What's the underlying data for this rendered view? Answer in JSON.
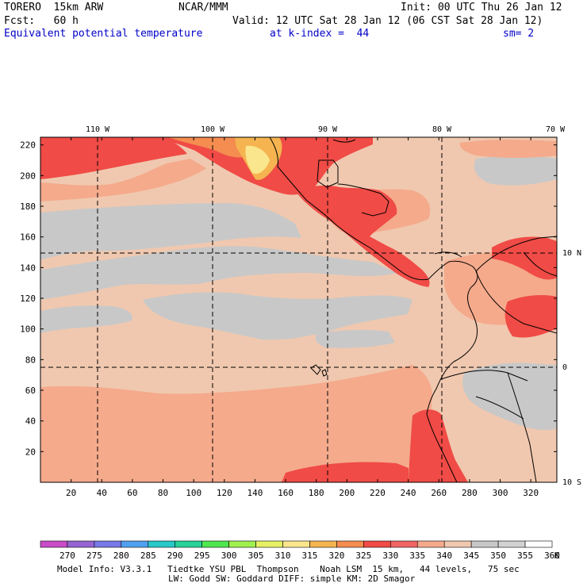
{
  "header": {
    "model": "TORERO  15km ARW",
    "org": "NCAR/MMM",
    "init": "Init: 00 UTC Thu 26 Jan 12",
    "fcst": "Fcst:   60 h",
    "valid": "Valid: 12 UTC Sat 28 Jan 12 (06 CST Sat 28 Jan 12)",
    "field": "Equivalent potential temperature",
    "level": "at k-index =  44",
    "smooth": "sm= 2"
  },
  "map": {
    "lon_labels": [
      "110 W",
      "100 W",
      "90 W",
      "80 W",
      "70 W"
    ],
    "lat_labels": [
      "10 N",
      "0",
      "10 S"
    ],
    "y_ticks": [
      "20",
      "40",
      "60",
      "80",
      "100",
      "120",
      "140",
      "160",
      "180",
      "200",
      "220"
    ],
    "x_ticks": [
      "20",
      "40",
      "60",
      "80",
      "100",
      "120",
      "140",
      "160",
      "180",
      "200",
      "220",
      "240",
      "260",
      "280",
      "300",
      "320"
    ]
  },
  "colorbar": {
    "unit": "K",
    "labels": [
      "270",
      "275",
      "280",
      "285",
      "290",
      "295",
      "300",
      "305",
      "310",
      "315",
      "320",
      "325",
      "330",
      "335",
      "340",
      "345",
      "350",
      "355",
      "360"
    ],
    "colors": [
      "#c84cc8",
      "#9664d2",
      "#7878e6",
      "#50a0f0",
      "#28c8c8",
      "#28d296",
      "#50e650",
      "#a0f050",
      "#e6f064",
      "#fae68c",
      "#f5b450",
      "#f58c50",
      "#f04b46",
      "#f06464",
      "#f5aa8c",
      "#f0c8af",
      "#c8c8c8",
      "#d2d2d2",
      "#ffffff"
    ]
  },
  "footer": {
    "line1": "Model Info: V3.3.1   Tiedtke YSU PBL  Thompson    Noah LSM  15 km,   44 levels,   75 sec",
    "line2": "LW: Godd SW: Goddard DIFF: simple KM: 2D Smagor"
  }
}
